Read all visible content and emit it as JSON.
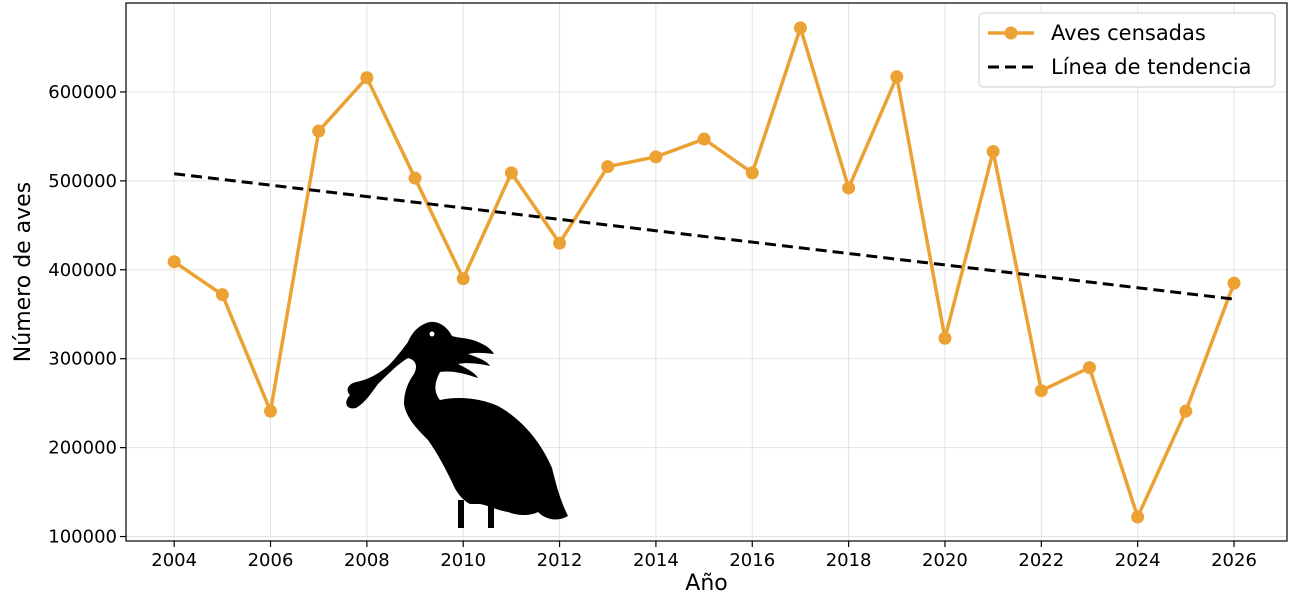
{
  "chart_data": {
    "type": "line",
    "xlabel": "Año",
    "ylabel": "Número de aves",
    "xlim": [
      2003,
      2027.1
    ],
    "ylim": [
      95000,
      700000
    ],
    "x_ticks": [
      2004,
      2006,
      2008,
      2010,
      2012,
      2014,
      2016,
      2018,
      2020,
      2022,
      2024,
      2026
    ],
    "y_ticks": [
      100000,
      200000,
      300000,
      400000,
      500000,
      600000
    ],
    "grid": true,
    "legend_position": "top-right",
    "x": [
      2004,
      2005,
      2006,
      2007,
      2008,
      2009,
      2010,
      2011,
      2012,
      2013,
      2014,
      2015,
      2016,
      2017,
      2018,
      2019,
      2020,
      2021,
      2022,
      2023,
      2024,
      2025,
      2026
    ],
    "series": [
      {
        "name": "Aves censadas",
        "color": "#eba233",
        "style": "solid-with-markers",
        "values": [
          409000,
          372000,
          241000,
          556000,
          616000,
          503000,
          390000,
          509000,
          430000,
          516000,
          527000,
          547000,
          509000,
          672000,
          492000,
          617000,
          323000,
          533000,
          264000,
          290000,
          122000,
          241000,
          385000
        ]
      },
      {
        "name": "Línea de tendencia",
        "color": "#000000",
        "style": "dashed",
        "x": [
          2004,
          2026
        ],
        "values": [
          508000,
          367000
        ]
      }
    ]
  },
  "decoration": {
    "icon": "spoonbill-silhouette-icon",
    "color": "#000000"
  }
}
